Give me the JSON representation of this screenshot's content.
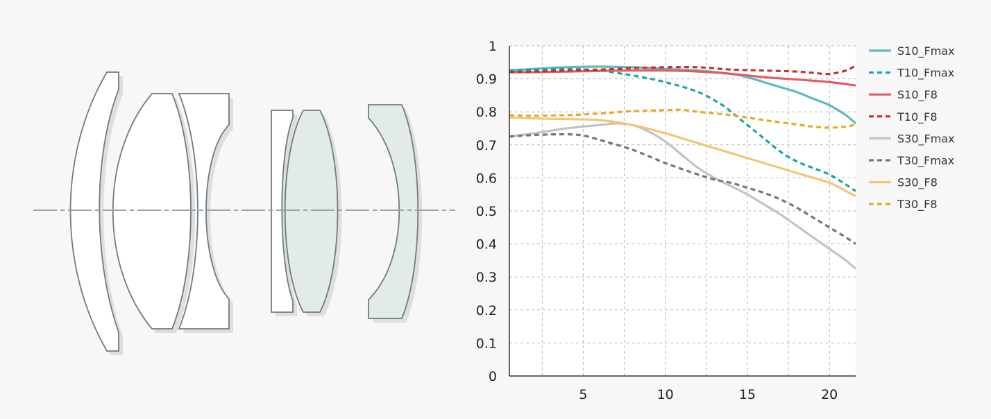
{
  "lens_diagram": {
    "element_fill": "#ffffff",
    "tinted_fill": "#e3ebe6",
    "outline_color": "#6f7b85",
    "axis_color": "#a2a2a2"
  },
  "chart_data": {
    "type": "line",
    "xlim": [
      0.5,
      21.6
    ],
    "ylim": [
      0,
      1
    ],
    "x_ticks": [
      5,
      10,
      15,
      20
    ],
    "x_tick_labels": [
      "5",
      "10",
      "15",
      "20"
    ],
    "y_ticks": [
      0,
      0.1,
      0.2,
      0.3,
      0.4,
      0.5,
      0.6,
      0.7,
      0.8,
      0.9,
      1
    ],
    "y_tick_labels": [
      "0",
      "0.1",
      "0.2",
      "0.3",
      "0.4",
      "0.5",
      "0.6",
      "0.7",
      "0.8",
      "0.9",
      "1"
    ],
    "grid": true,
    "legend_position": "right",
    "title": "",
    "xlabel": "",
    "ylabel": "",
    "series": [
      {
        "name": "S10_Fmax",
        "color": "#5bbcbf",
        "dashed": false,
        "x": [
          0.5,
          2,
          4,
          6,
          8,
          10,
          12,
          14,
          15,
          16,
          17,
          18,
          19,
          20,
          21,
          21.6
        ],
        "y": [
          0.925,
          0.93,
          0.935,
          0.937,
          0.935,
          0.93,
          0.925,
          0.915,
          0.905,
          0.89,
          0.875,
          0.86,
          0.84,
          0.82,
          0.79,
          0.765
        ]
      },
      {
        "name": "T10_Fmax",
        "color": "#1aa6a6",
        "dashed": true,
        "x": [
          0.5,
          2,
          4,
          6,
          8,
          10,
          12,
          13.5,
          14,
          15,
          16,
          17,
          18,
          19,
          20,
          21,
          21.6
        ],
        "y": [
          0.925,
          0.928,
          0.93,
          0.925,
          0.91,
          0.89,
          0.86,
          0.82,
          0.8,
          0.76,
          0.72,
          0.68,
          0.65,
          0.63,
          0.61,
          0.58,
          0.56
        ]
      },
      {
        "name": "S10_F8",
        "color": "#e05e5e",
        "dashed": false,
        "x": [
          0.5,
          2,
          4,
          6,
          8,
          10,
          12,
          14,
          16,
          18,
          20,
          21.6
        ],
        "y": [
          0.92,
          0.92,
          0.922,
          0.924,
          0.925,
          0.925,
          0.922,
          0.915,
          0.905,
          0.898,
          0.89,
          0.88
        ]
      },
      {
        "name": "T10_F8",
        "color": "#c23232",
        "dashed": true,
        "x": [
          0.5,
          2,
          4,
          6,
          8,
          10,
          12,
          14,
          16,
          18,
          19,
          20,
          21,
          21.6
        ],
        "y": [
          0.92,
          0.922,
          0.925,
          0.928,
          0.932,
          0.935,
          0.935,
          0.928,
          0.925,
          0.922,
          0.918,
          0.915,
          0.925,
          0.94
        ]
      },
      {
        "name": "S30_Fmax",
        "color": "#c3c3c3",
        "dashed": false,
        "x": [
          0.5,
          2,
          4,
          6,
          7,
          8,
          9,
          10,
          11,
          12,
          13,
          14,
          15,
          16,
          17,
          18,
          19,
          20,
          21,
          21.6
        ],
        "y": [
          0.725,
          0.735,
          0.75,
          0.76,
          0.765,
          0.76,
          0.74,
          0.71,
          0.67,
          0.63,
          0.6,
          0.575,
          0.55,
          0.52,
          0.49,
          0.455,
          0.42,
          0.385,
          0.35,
          0.325
        ]
      },
      {
        "name": "T30_Fmax",
        "color": "#777777",
        "dashed": true,
        "x": [
          0.5,
          2,
          4,
          5,
          6,
          8,
          10,
          12,
          13,
          14,
          15,
          16,
          17,
          18,
          19,
          20,
          21,
          21.6
        ],
        "y": [
          0.725,
          0.73,
          0.732,
          0.728,
          0.715,
          0.685,
          0.645,
          0.61,
          0.595,
          0.585,
          0.57,
          0.555,
          0.535,
          0.51,
          0.48,
          0.45,
          0.42,
          0.4
        ]
      },
      {
        "name": "S30_F8",
        "color": "#f2c774",
        "dashed": false,
        "x": [
          0.5,
          2,
          4,
          6,
          8,
          10,
          12,
          14,
          16,
          18,
          20,
          21,
          21.6
        ],
        "y": [
          0.783,
          0.78,
          0.778,
          0.775,
          0.76,
          0.735,
          0.705,
          0.675,
          0.645,
          0.615,
          0.585,
          0.56,
          0.545
        ]
      },
      {
        "name": "T30_F8",
        "color": "#e8a828",
        "dashed": true,
        "x": [
          0.5,
          2,
          4,
          6,
          8,
          10,
          11,
          12,
          14,
          16,
          18,
          19,
          20,
          21,
          21.6
        ],
        "y": [
          0.79,
          0.788,
          0.79,
          0.795,
          0.802,
          0.805,
          0.806,
          0.8,
          0.79,
          0.775,
          0.762,
          0.755,
          0.752,
          0.755,
          0.762
        ]
      }
    ]
  }
}
